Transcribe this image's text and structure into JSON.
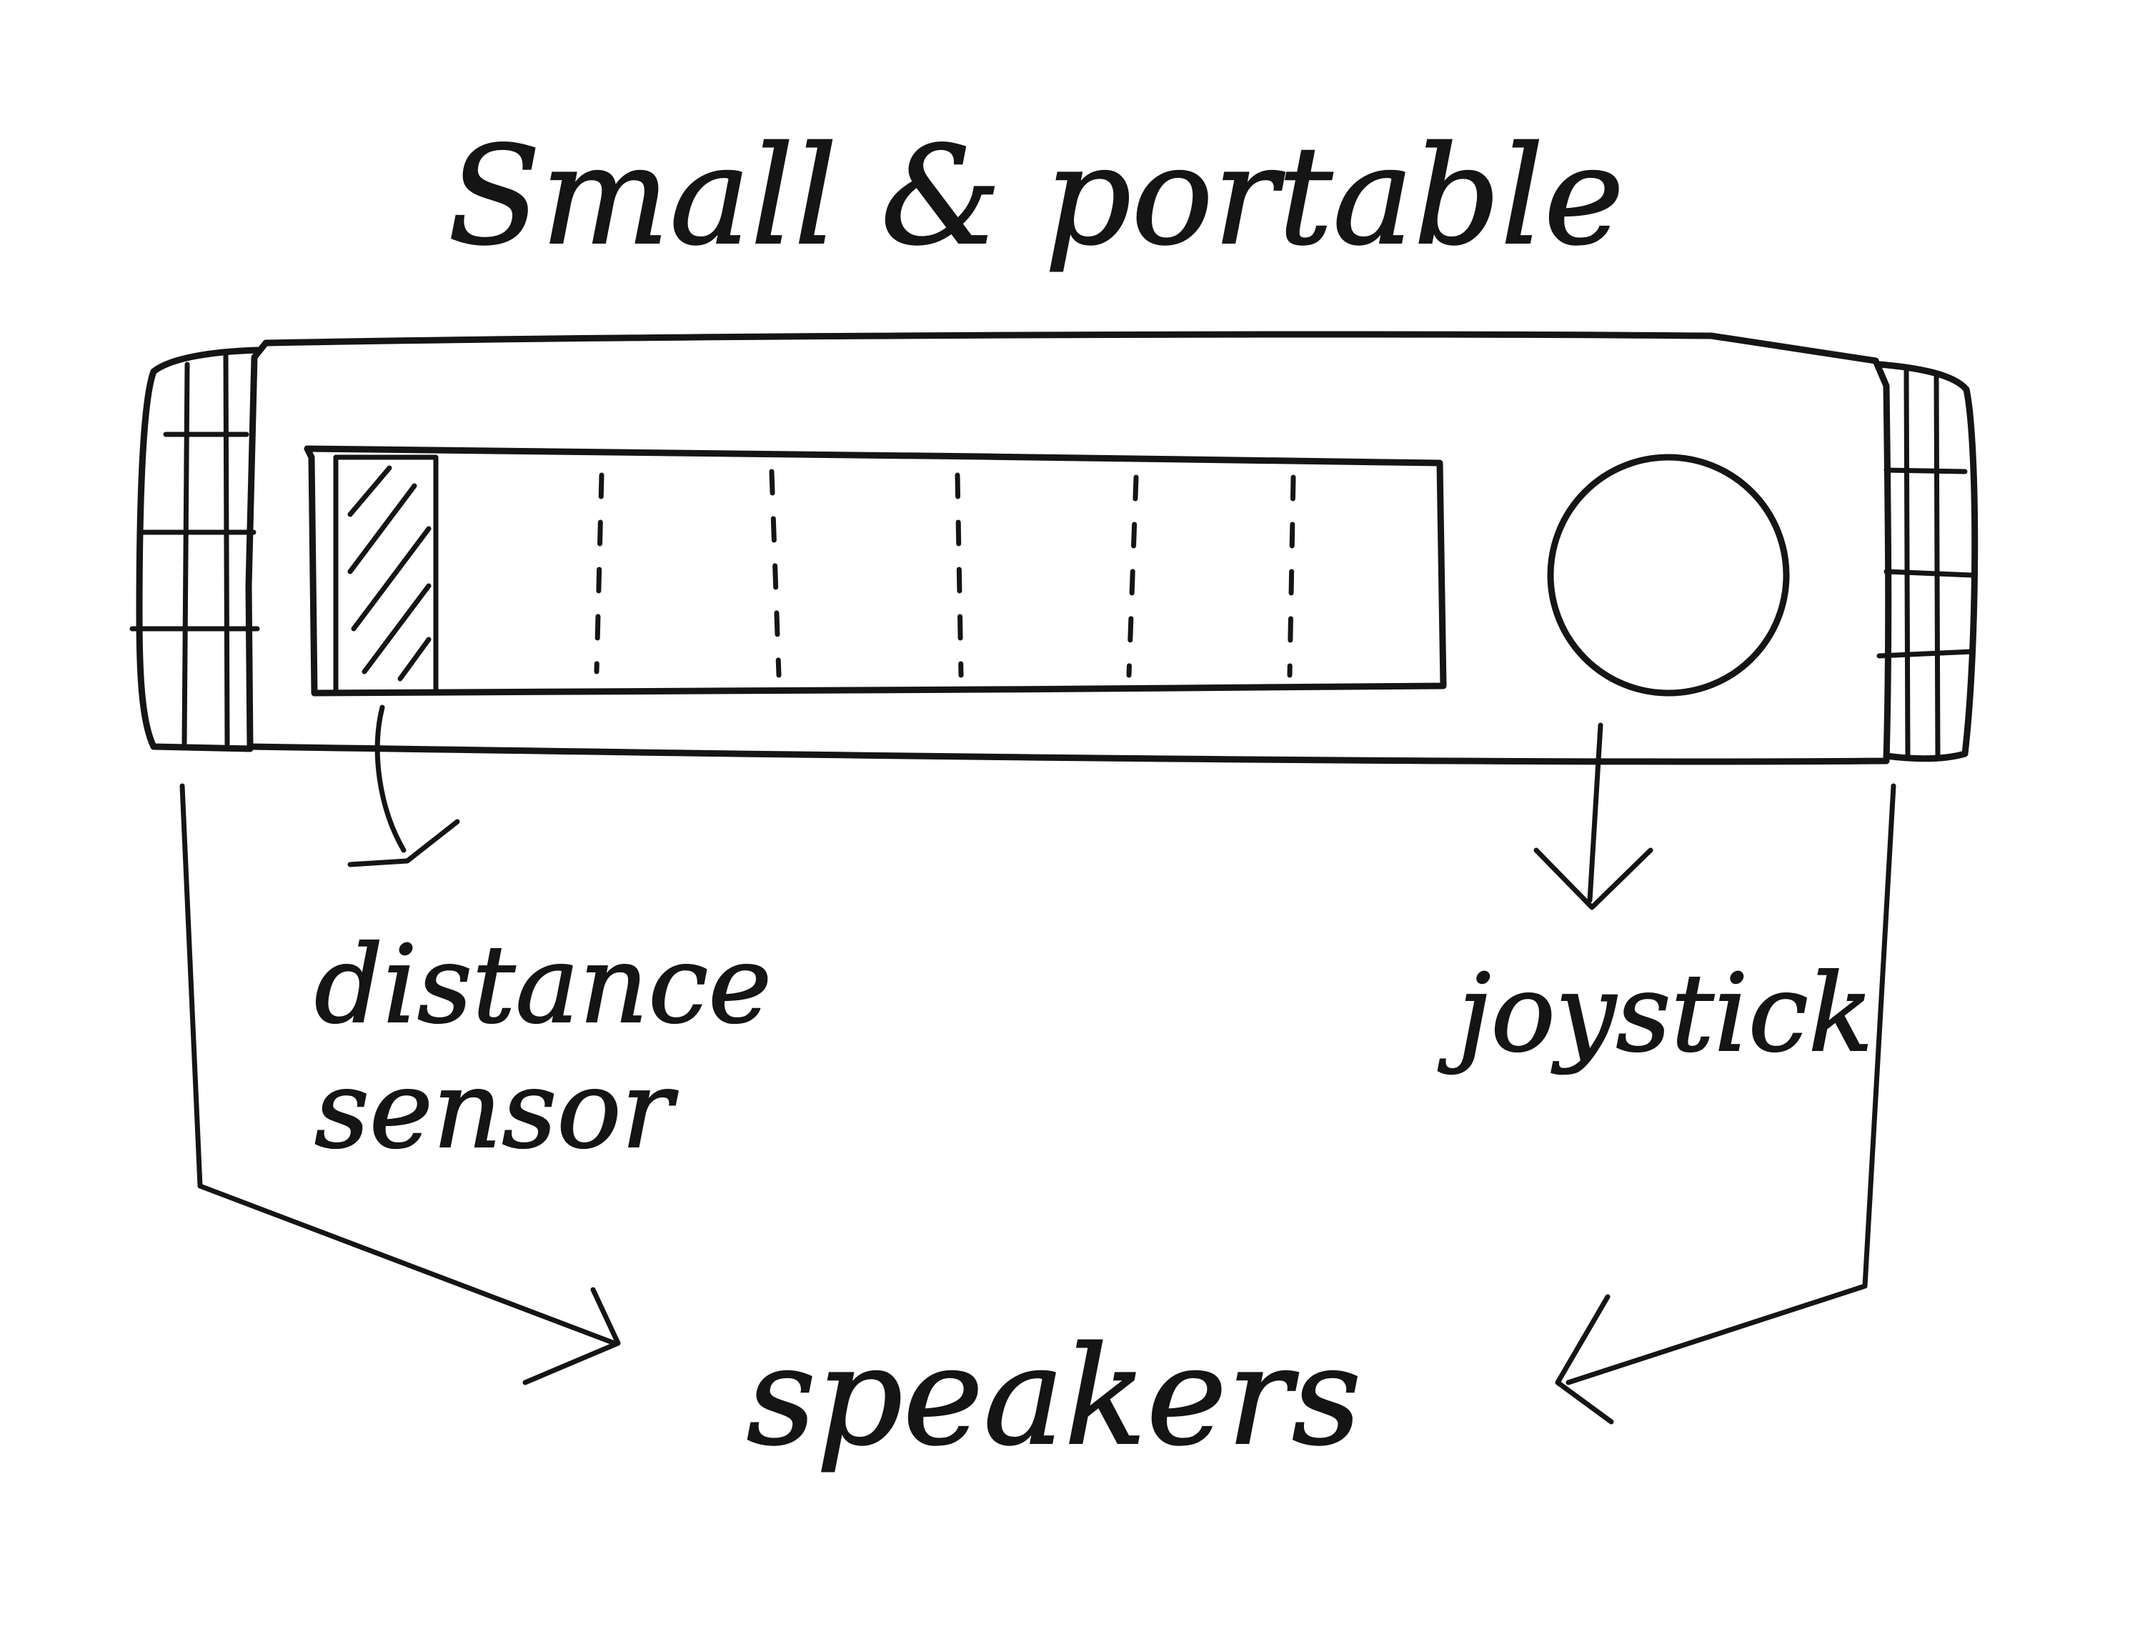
{
  "diagram": {
    "title": "Small & portable",
    "labels": {
      "distance_sensor": "distance sensor",
      "joystick": "joystick",
      "speakers": "speakers"
    }
  },
  "colors": {
    "ink": "#151515",
    "paper": "#ffffff"
  }
}
